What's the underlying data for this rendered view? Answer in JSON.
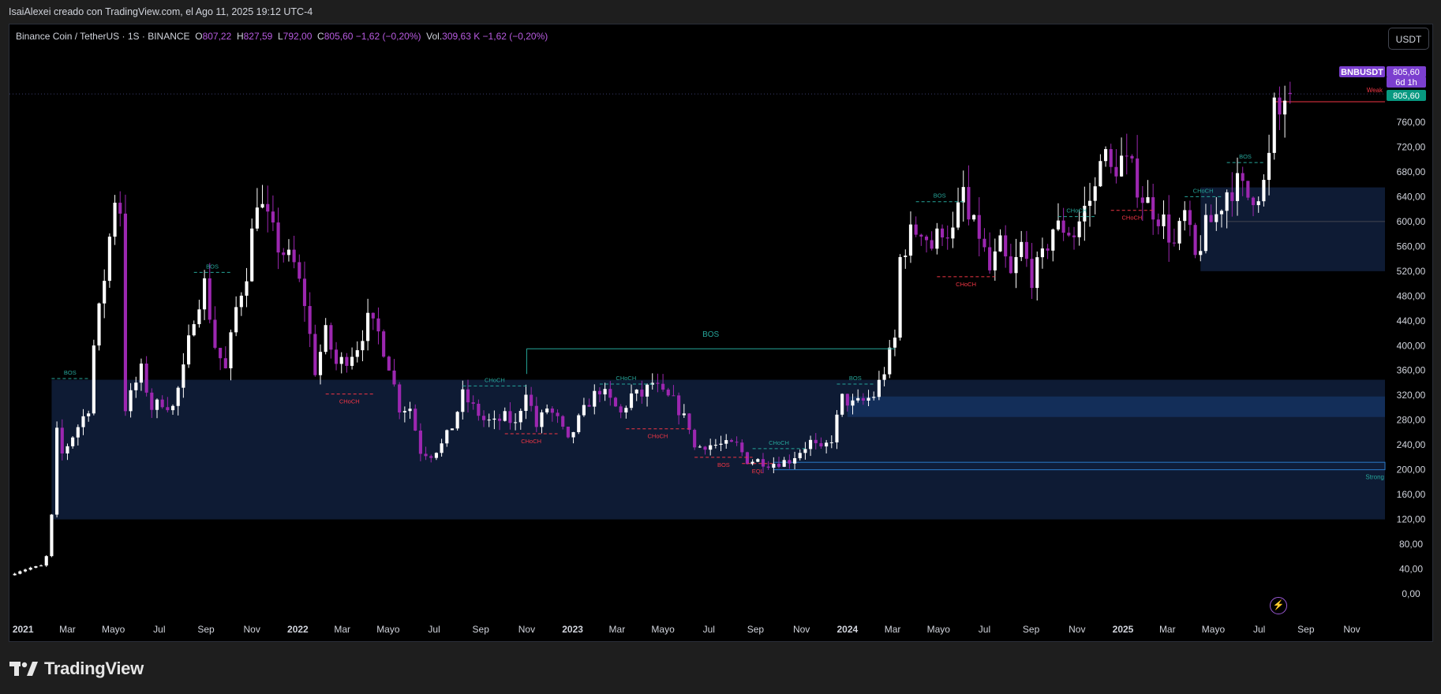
{
  "header": {
    "attribution": "IsaiAlexei creado con TradingView.com, el Ago 11, 2025 19:12 UTC-4"
  },
  "legend": {
    "symbol": "Binance Coin / TetherUS · 1S · BINANCE",
    "o_label": "O",
    "o": "807,22",
    "h_label": "H",
    "h": "827,59",
    "l_label": "L",
    "l": "792,00",
    "c_label": "C",
    "c": "805,60 −1,62 (−0,20%)",
    "vol_label": "Vol.",
    "vol": "309,63 K −1,62 (−0,20%)"
  },
  "currency_button": "USDT",
  "branding": {
    "name": "TradingView"
  },
  "colors": {
    "up": "#ffffff",
    "down": "#9c27b0",
    "zone": "#0f1e3a",
    "zone_light": "#163565",
    "bos": "#26a69a",
    "choch_down": "#f23645",
    "badge_purple": "#7b3fcf",
    "badge_green": "#089981"
  },
  "chart_data": {
    "type": "candlestick",
    "symbol": "BNBUSDT",
    "timeframe": "1S",
    "y_axis": {
      "min": 0,
      "max": 800,
      "ticks": [
        0,
        40,
        80,
        120,
        160,
        200,
        240,
        280,
        320,
        360,
        400,
        440,
        480,
        520,
        560,
        600,
        640,
        680,
        720,
        760
      ],
      "tick_labels": [
        "0,00",
        "40,00",
        "80,00",
        "120,00",
        "160,00",
        "200,00",
        "240,00",
        "280,00",
        "320,00",
        "360,00",
        "400,00",
        "440,00",
        "480,00",
        "520,00",
        "560,00",
        "600,00",
        "640,00",
        "680,00",
        "720,00",
        "760,00"
      ]
    },
    "x_axis": {
      "range": [
        "2020-12-14",
        "2025-12-15"
      ],
      "ticks": [
        {
          "date": "2021-01-01",
          "label": "2021",
          "year": true
        },
        {
          "date": "2021-03-01",
          "label": "Mar"
        },
        {
          "date": "2021-05-01",
          "label": "Mayo"
        },
        {
          "date": "2021-07-01",
          "label": "Jul"
        },
        {
          "date": "2021-09-01",
          "label": "Sep"
        },
        {
          "date": "2021-11-01",
          "label": "Nov"
        },
        {
          "date": "2022-01-01",
          "label": "2022",
          "year": true
        },
        {
          "date": "2022-03-01",
          "label": "Mar"
        },
        {
          "date": "2022-05-01",
          "label": "Mayo"
        },
        {
          "date": "2022-07-01",
          "label": "Jul"
        },
        {
          "date": "2022-09-01",
          "label": "Sep"
        },
        {
          "date": "2022-11-01",
          "label": "Nov"
        },
        {
          "date": "2023-01-01",
          "label": "2023",
          "year": true
        },
        {
          "date": "2023-03-01",
          "label": "Mar"
        },
        {
          "date": "2023-05-01",
          "label": "Mayo"
        },
        {
          "date": "2023-07-01",
          "label": "Jul"
        },
        {
          "date": "2023-09-01",
          "label": "Sep"
        },
        {
          "date": "2023-11-01",
          "label": "Nov"
        },
        {
          "date": "2024-01-01",
          "label": "2024",
          "year": true
        },
        {
          "date": "2024-03-01",
          "label": "Mar"
        },
        {
          "date": "2024-05-01",
          "label": "Mayo"
        },
        {
          "date": "2024-07-01",
          "label": "Jul"
        },
        {
          "date": "2024-09-01",
          "label": "Sep"
        },
        {
          "date": "2024-11-01",
          "label": "Nov"
        },
        {
          "date": "2025-01-01",
          "label": "2025",
          "year": true
        },
        {
          "date": "2025-03-01",
          "label": "Mar"
        },
        {
          "date": "2025-05-01",
          "label": "Mayo"
        },
        {
          "date": "2025-07-01",
          "label": "Jul"
        },
        {
          "date": "2025-09-01",
          "label": "Sep"
        },
        {
          "date": "2025-11-01",
          "label": "Nov"
        }
      ]
    },
    "anchors": [
      [
        "2020-12-14",
        30
      ],
      [
        "2020-12-28",
        37
      ],
      [
        "2021-01-11",
        42
      ],
      [
        "2021-01-25",
        45
      ],
      [
        "2021-02-01",
        60
      ],
      [
        "2021-02-08",
        125
      ],
      [
        "2021-02-15",
        260
      ],
      [
        "2021-02-22",
        225
      ],
      [
        "2021-03-01",
        240
      ],
      [
        "2021-03-15",
        270
      ],
      [
        "2021-03-29",
        300
      ],
      [
        "2021-04-05",
        400
      ],
      [
        "2021-04-19",
        510
      ],
      [
        "2021-05-03",
        640
      ],
      [
        "2021-05-10",
        620
      ],
      [
        "2021-05-17",
        300
      ],
      [
        "2021-05-24",
        320
      ],
      [
        "2021-06-07",
        360
      ],
      [
        "2021-06-21",
        300
      ],
      [
        "2021-07-05",
        310
      ],
      [
        "2021-07-19",
        300
      ],
      [
        "2021-08-02",
        360
      ],
      [
        "2021-08-16",
        450
      ],
      [
        "2021-08-30",
        500
      ],
      [
        "2021-09-13",
        400
      ],
      [
        "2021-09-27",
        360
      ],
      [
        "2021-10-11",
        460
      ],
      [
        "2021-10-25",
        520
      ],
      [
        "2021-11-08",
        640
      ],
      [
        "2021-11-22",
        600
      ],
      [
        "2021-12-06",
        560
      ],
      [
        "2021-12-27",
        530
      ],
      [
        "2022-01-10",
        470
      ],
      [
        "2022-01-24",
        360
      ],
      [
        "2022-02-07",
        420
      ],
      [
        "2022-02-21",
        370
      ],
      [
        "2022-03-07",
        380
      ],
      [
        "2022-03-21",
        400
      ],
      [
        "2022-04-04",
        440
      ],
      [
        "2022-04-18",
        420
      ],
      [
        "2022-05-02",
        370
      ],
      [
        "2022-05-16",
        300
      ],
      [
        "2022-05-30",
        300
      ],
      [
        "2022-06-13",
        230
      ],
      [
        "2022-06-27",
        225
      ],
      [
        "2022-07-11",
        240
      ],
      [
        "2022-07-25",
        270
      ],
      [
        "2022-08-08",
        320
      ],
      [
        "2022-08-22",
        300
      ],
      [
        "2022-09-05",
        280
      ],
      [
        "2022-09-19",
        275
      ],
      [
        "2022-10-03",
        285
      ],
      [
        "2022-10-17",
        272
      ],
      [
        "2022-10-31",
        330
      ],
      [
        "2022-11-07",
        300
      ],
      [
        "2022-11-14",
        270
      ],
      [
        "2022-11-28",
        300
      ],
      [
        "2022-12-12",
        280
      ],
      [
        "2022-12-26",
        245
      ],
      [
        "2023-01-09",
        280
      ],
      [
        "2023-01-23",
        310
      ],
      [
        "2023-02-06",
        330
      ],
      [
        "2023-02-20",
        310
      ],
      [
        "2023-03-06",
        290
      ],
      [
        "2023-03-20",
        320
      ],
      [
        "2023-04-03",
        320
      ],
      [
        "2023-04-17",
        340
      ],
      [
        "2023-05-01",
        320
      ],
      [
        "2023-05-15",
        310
      ],
      [
        "2023-06-05",
        270
      ],
      [
        "2023-06-12",
        235
      ],
      [
        "2023-06-26",
        240
      ],
      [
        "2023-07-10",
        240
      ],
      [
        "2023-07-24",
        240
      ],
      [
        "2023-08-07",
        240
      ],
      [
        "2023-08-21",
        215
      ],
      [
        "2023-09-04",
        215
      ],
      [
        "2023-09-18",
        210
      ],
      [
        "2023-10-02",
        212
      ],
      [
        "2023-10-16",
        215
      ],
      [
        "2023-10-30",
        230
      ],
      [
        "2023-11-13",
        245
      ],
      [
        "2023-11-27",
        230
      ],
      [
        "2023-12-11",
        250
      ],
      [
        "2023-12-25",
        315
      ],
      [
        "2024-01-08",
        305
      ],
      [
        "2024-01-22",
        310
      ],
      [
        "2024-02-05",
        320
      ],
      [
        "2024-02-19",
        360
      ],
      [
        "2024-03-04",
        410
      ],
      [
        "2024-03-11",
        540
      ],
      [
        "2024-03-25",
        580
      ],
      [
        "2024-04-08",
        590
      ],
      [
        "2024-04-22",
        560
      ],
      [
        "2024-05-06",
        590
      ],
      [
        "2024-05-20",
        580
      ],
      [
        "2024-06-03",
        650
      ],
      [
        "2024-06-10",
        600
      ],
      [
        "2024-06-24",
        580
      ],
      [
        "2024-07-08",
        520
      ],
      [
        "2024-07-22",
        560
      ],
      [
        "2024-08-05",
        510
      ],
      [
        "2024-08-19",
        560
      ],
      [
        "2024-09-02",
        510
      ],
      [
        "2024-09-16",
        540
      ],
      [
        "2024-09-30",
        590
      ],
      [
        "2024-10-14",
        590
      ],
      [
        "2024-10-28",
        580
      ],
      [
        "2024-11-11",
        620
      ],
      [
        "2024-11-25",
        650
      ],
      [
        "2024-12-02",
        720
      ],
      [
        "2024-12-16",
        680
      ],
      [
        "2024-12-30",
        700
      ],
      [
        "2025-01-13",
        680
      ],
      [
        "2025-01-27",
        640
      ],
      [
        "2025-02-10",
        620
      ],
      [
        "2025-02-24",
        600
      ],
      [
        "2025-03-10",
        560
      ],
      [
        "2025-03-24",
        610
      ],
      [
        "2025-04-07",
        540
      ],
      [
        "2025-04-21",
        590
      ],
      [
        "2025-05-05",
        610
      ],
      [
        "2025-05-19",
        650
      ],
      [
        "2025-06-02",
        660
      ],
      [
        "2025-06-16",
        640
      ],
      [
        "2025-06-30",
        650
      ],
      [
        "2025-07-07",
        660
      ],
      [
        "2025-07-14",
        700
      ],
      [
        "2025-07-21",
        780
      ],
      [
        "2025-07-28",
        770
      ],
      [
        "2025-08-04",
        800
      ],
      [
        "2025-08-11",
        805.6
      ]
    ],
    "last_candle": {
      "open": 807.22,
      "high": 827.59,
      "low": 792.0,
      "close": 805.6,
      "volume": "309,63 K"
    },
    "zones": [
      {
        "from": "2021-02-08",
        "to": "2025-12-15",
        "bottom": 120,
        "top": 345,
        "label": ""
      },
      {
        "from": "2024-01-01",
        "to": "2025-12-15",
        "bottom": 285,
        "top": 318,
        "label": ""
      },
      {
        "from": "2023-09-25",
        "to": "2025-12-15",
        "bottom": 200,
        "top": 212,
        "label": "Strong"
      },
      {
        "from": "2025-04-14",
        "to": "2025-12-15",
        "bottom": 520,
        "top": 655,
        "label": ""
      }
    ],
    "structure_lines": [
      {
        "kind": "BOS",
        "label": "BOS",
        "from": "2021-02-08",
        "to": "2021-03-29",
        "price": 347,
        "dir": "up",
        "dashed": true
      },
      {
        "kind": "BOS",
        "label": "BOS",
        "from": "2021-08-16",
        "to": "2021-10-04",
        "price": 518,
        "dir": "up",
        "dashed": true
      },
      {
        "kind": "CHoCH",
        "label": "CHoCH",
        "from": "2022-02-07",
        "to": "2022-04-11",
        "price": 322,
        "dir": "down",
        "dashed": true
      },
      {
        "kind": "CHoCH",
        "label": "CHoCH",
        "from": "2022-08-08",
        "to": "2022-11-01",
        "price": 335,
        "dir": "up",
        "dashed": true
      },
      {
        "kind": "CHoCH",
        "label": "CHoCH",
        "from": "2022-10-03",
        "to": "2022-12-12",
        "price": 258,
        "dir": "down",
        "dashed": true
      },
      {
        "kind": "BOS",
        "label": "BOS",
        "from": "2022-11-01",
        "to": "2024-03-04",
        "price": 395,
        "dir": "up",
        "dashed": false,
        "big": true
      },
      {
        "kind": "CHoCH",
        "label": "CHoCH",
        "from": "2023-02-06",
        "to": "2023-04-17",
        "price": 338,
        "dir": "up",
        "dashed": true
      },
      {
        "kind": "CHoCH",
        "label": "CHoCH",
        "from": "2023-03-13",
        "to": "2023-06-05",
        "price": 266,
        "dir": "down",
        "dashed": true
      },
      {
        "kind": "BOS",
        "label": "BOS",
        "from": "2023-06-12",
        "to": "2023-08-28",
        "price": 220,
        "dir": "down",
        "dashed": true
      },
      {
        "kind": "EQL",
        "label": "EQL",
        "from": "2023-08-14",
        "to": "2023-09-25",
        "price": 210,
        "dir": "down",
        "dashed": true
      },
      {
        "kind": "CHoCH",
        "label": "CHoCH",
        "from": "2023-08-28",
        "to": "2023-11-06",
        "price": 234,
        "dir": "up",
        "dashed": true
      },
      {
        "kind": "BOS",
        "label": "BOS",
        "from": "2023-12-18",
        "to": "2024-02-05",
        "price": 338,
        "dir": "up",
        "dashed": true
      },
      {
        "kind": "BOS",
        "label": "BOS",
        "from": "2024-04-01",
        "to": "2024-06-03",
        "price": 632,
        "dir": "up",
        "dashed": true
      },
      {
        "kind": "CHoCH",
        "label": "CHoCH",
        "from": "2024-04-29",
        "to": "2024-07-15",
        "price": 511,
        "dir": "down",
        "dashed": true
      },
      {
        "kind": "CHoCH",
        "label": "CHoCH",
        "from": "2024-10-07",
        "to": "2024-11-25",
        "price": 608,
        "dir": "up",
        "dashed": true
      },
      {
        "kind": "CHoCH",
        "label": "CHoCH",
        "from": "2024-12-16",
        "to": "2025-02-10",
        "price": 618,
        "dir": "down",
        "dashed": true
      },
      {
        "kind": "CHoCH",
        "label": "CHoCH",
        "from": "2025-03-24",
        "to": "2025-05-12",
        "price": 640,
        "dir": "up",
        "dashed": true
      },
      {
        "kind": "BOS",
        "label": "BOS",
        "from": "2025-05-19",
        "to": "2025-07-07",
        "price": 695,
        "dir": "up",
        "dashed": true
      }
    ],
    "hlines": [
      {
        "price": 600,
        "from": "2025-05-19",
        "to": "2025-12-15",
        "color": "#434651",
        "label": ""
      },
      {
        "price": 793,
        "from": "2025-07-21",
        "to": "2025-12-15",
        "color": "#f23645",
        "label": "Weak"
      },
      {
        "price": 805.6,
        "from": "2020-12-14",
        "to": "2025-12-15",
        "color": "#3a3d6e",
        "dotted": true,
        "label": ""
      }
    ],
    "price_badges": [
      {
        "text": "BNBUSDT",
        "price": 793,
        "kind": "symbol",
        "bg": "#7b3fcf"
      },
      {
        "text": "805,60",
        "price": 793,
        "kind": "last",
        "bg": "#7b3fcf"
      },
      {
        "text": "6d 1h",
        "price": 779,
        "kind": "countdown",
        "bg": "#7b3fcf"
      },
      {
        "text": "805,60",
        "price": 760,
        "kind": "current",
        "bg": "#089981"
      }
    ]
  }
}
